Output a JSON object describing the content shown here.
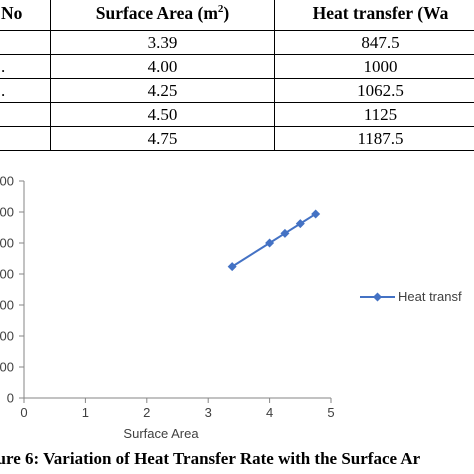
{
  "table": {
    "headers": {
      "no": "No",
      "area_prefix": "Surface Area (m",
      "area_sup": "2",
      "area_suffix": ")",
      "heat": "Heat transfer (Wa"
    },
    "rows": [
      {
        "no": "",
        "area": "3.39",
        "heat": "847.5"
      },
      {
        "no": ".",
        "area": "4.00",
        "heat": "1000"
      },
      {
        "no": ".",
        "area": "4.25",
        "heat": "1062.5"
      },
      {
        "no": "",
        "area": "4.50",
        "heat": "1125"
      },
      {
        "no": "",
        "area": "4.75",
        "heat": "1187.5"
      }
    ]
  },
  "chart_data": {
    "type": "line",
    "x": [
      3.39,
      4.0,
      4.25,
      4.5,
      4.75
    ],
    "series": [
      {
        "name": "Heat transf",
        "values": [
          847.5,
          1000,
          1062.5,
          1125,
          1187.5
        ],
        "color": "#4472c4"
      }
    ],
    "xlabel": "Surface Area",
    "ylabel": "",
    "xlim": [
      0,
      5
    ],
    "xticks": [
      "0",
      "1",
      "2",
      "3",
      "4",
      "5"
    ],
    "ylim": [
      0,
      1400
    ],
    "yticks": [
      "00",
      "00",
      "00",
      "00",
      "00",
      "00",
      "00",
      "0"
    ],
    "grid": "none",
    "legend": "right"
  },
  "caption": "gure 6: Variation of Heat Transfer Rate with the Surface Ar"
}
